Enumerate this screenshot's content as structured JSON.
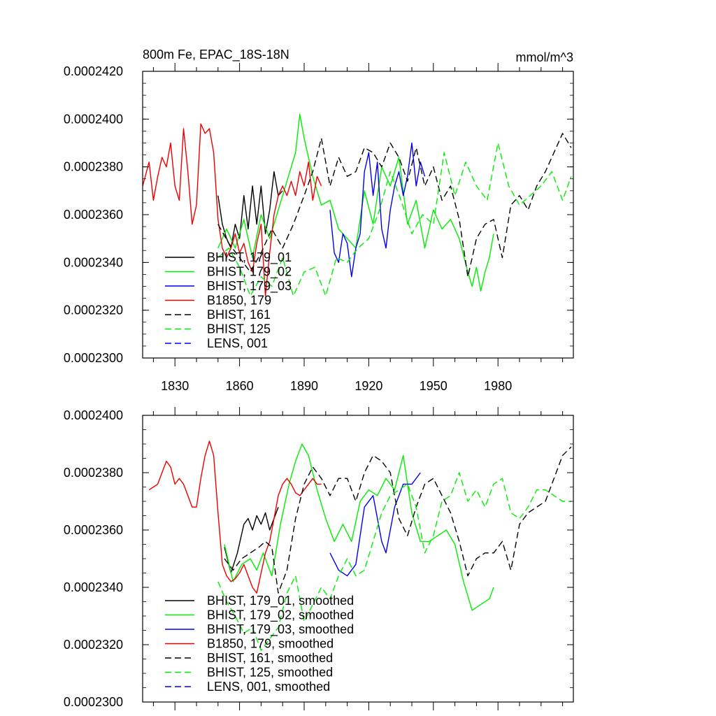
{
  "chart_data": [
    {
      "type": "line",
      "title": "800m Fe, EPAC_18S-18N",
      "units": "mmol/m^3",
      "xlim": [
        1815,
        2015
      ],
      "ylim": [
        0.00023,
        0.000242
      ],
      "x_ticks": [
        1830,
        1860,
        1890,
        1920,
        1950,
        1980
      ],
      "x_tick_labels": [
        "1830",
        "1860",
        "1890",
        "1920",
        "1950",
        "1980"
      ],
      "y_ticks": [
        0.00023,
        0.000232,
        0.000234,
        0.000236,
        0.000238,
        0.00024,
        0.000242
      ],
      "y_tick_labels": [
        "0.0002300",
        "0.0002320",
        "0.0002340",
        "0.0002360",
        "0.0002380",
        "0.0002400",
        "0.0002420"
      ],
      "legend_position": "lower-left",
      "series": [
        {
          "name": "BHIST, 179_01",
          "color": "#000000",
          "dash": "solid",
          "x": [
            1850,
            1852,
            1854,
            1856,
            1858,
            1860,
            1862,
            1864,
            1866,
            1868,
            1870,
            1872,
            1874,
            1876,
            1878,
            1880
          ],
          "values": [
            0.0002368,
            0.0002356,
            0.000235,
            0.0002346,
            0.0002356,
            0.000235,
            0.0002368,
            0.0002354,
            0.0002372,
            0.0002356,
            0.0002372,
            0.0002352,
            0.0002362,
            0.0002378,
            0.0002368,
            0.000237
          ]
        },
        {
          "name": "BHIST, 179_02",
          "color": "#00ee00",
          "dash": "solid",
          "x": [
            1850,
            1854,
            1858,
            1862,
            1866,
            1870,
            1874,
            1878,
            1882,
            1886,
            1888,
            1890,
            1894,
            1898,
            1902,
            1906,
            1910,
            1914,
            1918,
            1922,
            1926,
            1930,
            1934,
            1938,
            1942,
            1946,
            1950,
            1954,
            1958,
            1962,
            1966,
            1968,
            1970,
            1972,
            1974,
            1976,
            1978
          ],
          "values": [
            0.0002346,
            0.0002354,
            0.0002346,
            0.0002358,
            0.0002342,
            0.000236,
            0.000235,
            0.0002362,
            0.0002374,
            0.0002386,
            0.0002402,
            0.0002392,
            0.0002376,
            0.0002364,
            0.0002366,
            0.0002354,
            0.000235,
            0.0002346,
            0.000237,
            0.0002356,
            0.000238,
            0.0002372,
            0.0002384,
            0.0002356,
            0.0002366,
            0.0002346,
            0.0002362,
            0.0002354,
            0.0002358,
            0.000235,
            0.0002336,
            0.000233,
            0.0002338,
            0.0002328,
            0.0002336,
            0.0002342,
            0.0002352
          ]
        },
        {
          "name": "BHIST, 179_03",
          "color": "#0000ee",
          "dash": "solid",
          "x": [
            1902,
            1904,
            1906,
            1908,
            1910,
            1912,
            1914,
            1916,
            1918,
            1920,
            1922,
            1924,
            1926,
            1928,
            1930,
            1932,
            1934,
            1936,
            1938,
            1940,
            1942,
            1944,
            1946
          ],
          "values": [
            0.0002362,
            0.0002344,
            0.000234,
            0.0002352,
            0.0002348,
            0.0002334,
            0.0002346,
            0.0002352,
            0.0002378,
            0.0002386,
            0.0002368,
            0.0002382,
            0.0002354,
            0.0002346,
            0.0002362,
            0.0002372,
            0.0002378,
            0.0002368,
            0.0002376,
            0.000239,
            0.0002372,
            0.0002382,
            0.0002376
          ]
        },
        {
          "name": "B1850, 179",
          "color": "#ee0000",
          "dash": "solid",
          "x": [
            1815,
            1818,
            1820,
            1822,
            1824,
            1826,
            1828,
            1830,
            1832,
            1834,
            1836,
            1838,
            1840,
            1842,
            1844,
            1846,
            1848,
            1850,
            1852,
            1854,
            1856,
            1858,
            1860,
            1862,
            1864,
            1866,
            1868,
            1870,
            1872,
            1874,
            1876,
            1878,
            1880,
            1882,
            1884,
            1886,
            1888,
            1890,
            1892,
            1894,
            1896,
            1898
          ],
          "values": [
            0.0002372,
            0.0002382,
            0.0002366,
            0.0002376,
            0.0002384,
            0.000238,
            0.000239,
            0.0002372,
            0.0002366,
            0.0002396,
            0.0002378,
            0.0002356,
            0.0002364,
            0.0002398,
            0.0002394,
            0.0002396,
            0.0002386,
            0.0002358,
            0.0002346,
            0.0002342,
            0.0002346,
            0.0002352,
            0.0002344,
            0.0002348,
            0.000234,
            0.0002336,
            0.0002348,
            0.0002356,
            0.0002326,
            0.0002344,
            0.000236,
            0.0002368,
            0.0002372,
            0.0002368,
            0.0002374,
            0.0002368,
            0.0002378,
            0.0002372,
            0.0002382,
            0.0002366,
            0.0002376,
            0.0002372
          ]
        },
        {
          "name": "BHIST, 161",
          "color": "#000000",
          "dash": "dashed",
          "x": [
            1850,
            1855,
            1860,
            1865,
            1870,
            1875,
            1880,
            1885,
            1890,
            1894,
            1898,
            1902,
            1906,
            1910,
            1914,
            1918,
            1922,
            1926,
            1930,
            1934,
            1938,
            1942,
            1946,
            1950,
            1954,
            1958,
            1962,
            1966,
            1970,
            1974,
            1978,
            1982,
            1986,
            1990,
            1994,
            1998,
            2002,
            2006,
            2010,
            2014
          ],
          "values": [
            0.0002356,
            0.0002348,
            0.0002342,
            0.0002336,
            0.0002344,
            0.0002354,
            0.0002346,
            0.0002356,
            0.0002368,
            0.0002378,
            0.0002392,
            0.0002372,
            0.0002384,
            0.0002376,
            0.0002378,
            0.0002388,
            0.0002386,
            0.000238,
            0.000239,
            0.0002384,
            0.0002374,
            0.0002388,
            0.0002372,
            0.000238,
            0.0002366,
            0.0002372,
            0.0002358,
            0.0002334,
            0.000235,
            0.0002356,
            0.0002358,
            0.0002342,
            0.0002364,
            0.0002368,
            0.0002362,
            0.0002372,
            0.0002378,
            0.0002386,
            0.0002394,
            0.0002388
          ]
        },
        {
          "name": "BHIST, 125",
          "color": "#00ee00",
          "dash": "dashed",
          "x": [
            1850,
            1855,
            1860,
            1865,
            1870,
            1875,
            1880,
            1885,
            1890,
            1895,
            1900,
            1905,
            1910,
            1915,
            1920,
            1925,
            1930,
            1935,
            1940,
            1945,
            1950,
            1955,
            1960,
            1965,
            1970,
            1975,
            1980,
            1985,
            1990,
            1995,
            2000,
            2005,
            2010,
            2014
          ],
          "values": [
            0.0002342,
            0.0002346,
            0.0002338,
            0.0002326,
            0.0002334,
            0.000233,
            0.0002342,
            0.0002326,
            0.0002336,
            0.0002338,
            0.0002326,
            0.0002342,
            0.000234,
            0.0002346,
            0.000235,
            0.0002362,
            0.0002378,
            0.0002366,
            0.0002352,
            0.000236,
            0.0002356,
            0.0002386,
            0.0002368,
            0.0002382,
            0.0002372,
            0.0002366,
            0.000239,
            0.0002372,
            0.0002364,
            0.0002368,
            0.0002372,
            0.0002378,
            0.0002366,
            0.0002376
          ]
        },
        {
          "name": "LENS, 001",
          "color": "#0000ee",
          "dash": "dashed",
          "x": [],
          "values": []
        }
      ]
    },
    {
      "type": "line",
      "title": "",
      "units": "",
      "xlim": [
        1815,
        2015
      ],
      "ylim": [
        0.00023,
        0.00024
      ],
      "x_ticks": [
        1830,
        1860,
        1890,
        1920,
        1950,
        1980
      ],
      "y_ticks": [
        0.00023,
        0.000232,
        0.000234,
        0.000236,
        0.000238,
        0.00024
      ],
      "y_tick_labels": [
        "0.0002300",
        "0.0002320",
        "0.0002340",
        "0.0002360",
        "0.0002380",
        "0.0002400"
      ],
      "legend_position": "lower-left",
      "series": [
        {
          "name": "BHIST, 179_01, smoothed",
          "color": "#000000",
          "dash": "solid",
          "x": [
            1853,
            1856,
            1859,
            1862,
            1864,
            1866,
            1868,
            1870,
            1872,
            1874,
            1876,
            1878
          ],
          "values": [
            0.0002354,
            0.0002345,
            0.0002352,
            0.0002362,
            0.0002364,
            0.000236,
            0.0002365,
            0.0002362,
            0.0002366,
            0.000236,
            0.0002364,
            0.0002368
          ]
        },
        {
          "name": "BHIST, 179_02, smoothed",
          "color": "#00ee00",
          "dash": "solid",
          "x": [
            1853,
            1857,
            1861,
            1865,
            1868,
            1871,
            1875,
            1879,
            1883,
            1886,
            1889,
            1892,
            1896,
            1900,
            1904,
            1908,
            1912,
            1916,
            1920,
            1924,
            1928,
            1932,
            1936,
            1940,
            1944,
            1948,
            1952,
            1956,
            1960,
            1964,
            1968,
            1972,
            1976,
            1978
          ],
          "values": [
            0.0002355,
            0.0002342,
            0.0002348,
            0.000235,
            0.0002346,
            0.0002352,
            0.0002344,
            0.0002362,
            0.0002376,
            0.0002384,
            0.000239,
            0.0002386,
            0.0002374,
            0.0002364,
            0.0002356,
            0.0002362,
            0.0002356,
            0.000237,
            0.0002374,
            0.0002372,
            0.0002378,
            0.0002374,
            0.0002386,
            0.0002366,
            0.0002356,
            0.0002356,
            0.0002358,
            0.000236,
            0.0002355,
            0.0002342,
            0.0002332,
            0.0002334,
            0.0002336,
            0.000234
          ]
        },
        {
          "name": "BHIST, 179_03, smoothed",
          "color": "#0000ee",
          "dash": "solid",
          "x": [
            1902,
            1906,
            1910,
            1914,
            1918,
            1922,
            1926,
            1928,
            1930,
            1932,
            1936,
            1940,
            1944
          ],
          "values": [
            0.0002352,
            0.0002346,
            0.0002344,
            0.0002348,
            0.0002368,
            0.0002372,
            0.0002356,
            0.0002352,
            0.000236,
            0.0002368,
            0.0002376,
            0.0002376,
            0.000238
          ]
        },
        {
          "name": "B1850, 179, smoothed",
          "color": "#ee0000",
          "dash": "solid",
          "x": [
            1818,
            1820,
            1822,
            1824,
            1826,
            1828,
            1830,
            1832,
            1834,
            1836,
            1838,
            1840,
            1842,
            1844,
            1846,
            1848,
            1850,
            1852,
            1854,
            1856,
            1858,
            1860,
            1862,
            1864,
            1866,
            1868,
            1870,
            1872,
            1874,
            1876,
            1878,
            1880,
            1882,
            1884,
            1886,
            1888,
            1890,
            1892,
            1894,
            1896,
            1898
          ],
          "values": [
            0.0002374,
            0.0002375,
            0.0002376,
            0.000238,
            0.0002384,
            0.0002382,
            0.0002376,
            0.0002378,
            0.0002376,
            0.0002372,
            0.0002368,
            0.0002368,
            0.0002378,
            0.0002386,
            0.0002391,
            0.0002386,
            0.0002366,
            0.0002348,
            0.0002344,
            0.0002342,
            0.0002343,
            0.0002345,
            0.0002348,
            0.0002344,
            0.000234,
            0.0002338,
            0.0002345,
            0.0002352,
            0.0002356,
            0.0002364,
            0.0002372,
            0.0002376,
            0.0002378,
            0.0002376,
            0.0002373,
            0.0002372,
            0.0002374,
            0.0002376,
            0.0002378,
            0.0002376,
            0.0002376
          ]
        },
        {
          "name": "BHIST, 161, smoothed",
          "color": "#000000",
          "dash": "dashed",
          "x": [
            1853,
            1857,
            1861,
            1865,
            1869,
            1872,
            1875,
            1878,
            1882,
            1886,
            1890,
            1894,
            1898,
            1902,
            1906,
            1910,
            1914,
            1918,
            1922,
            1926,
            1930,
            1934,
            1938,
            1942,
            1946,
            1950,
            1954,
            1958,
            1962,
            1966,
            1970,
            1974,
            1978,
            1982,
            1986,
            1990,
            1994,
            1998,
            2002,
            2006,
            2010,
            2014
          ],
          "values": [
            0.000235,
            0.0002346,
            0.000235,
            0.0002352,
            0.0002354,
            0.0002356,
            0.0002354,
            0.0002338,
            0.0002346,
            0.0002364,
            0.0002376,
            0.0002382,
            0.0002378,
            0.0002372,
            0.0002378,
            0.0002378,
            0.000237,
            0.000238,
            0.0002386,
            0.0002384,
            0.000238,
            0.0002364,
            0.0002358,
            0.0002368,
            0.0002376,
            0.0002378,
            0.0002372,
            0.0002366,
            0.0002356,
            0.0002344,
            0.000235,
            0.0002352,
            0.0002352,
            0.0002356,
            0.0002346,
            0.0002362,
            0.0002366,
            0.0002368,
            0.000237,
            0.0002378,
            0.0002386,
            0.0002389
          ]
        },
        {
          "name": "BHIST, 125, smoothed",
          "color": "#00ee00",
          "dash": "dashed",
          "x": [
            1850,
            1854,
            1858,
            1862,
            1866,
            1870,
            1874,
            1878,
            1882,
            1886,
            1890,
            1894,
            1898,
            1902,
            1906,
            1910,
            1914,
            1918,
            1922,
            1926,
            1930,
            1934,
            1938,
            1942,
            1946,
            1950,
            1954,
            1958,
            1962,
            1966,
            1970,
            1974,
            1978,
            1982,
            1986,
            1990,
            1994,
            1998,
            2002,
            2006,
            2010,
            2014
          ],
          "values": [
            0.0002342,
            0.0002335,
            0.000233,
            0.0002324,
            0.0002326,
            0.0002318,
            0.0002322,
            0.0002326,
            0.0002338,
            0.0002344,
            0.0002328,
            0.0002334,
            0.000234,
            0.0002336,
            0.0002344,
            0.000235,
            0.0002344,
            0.0002346,
            0.0002356,
            0.0002366,
            0.0002372,
            0.0002374,
            0.0002376,
            0.0002368,
            0.0002352,
            0.0002358,
            0.000237,
            0.0002372,
            0.000238,
            0.000237,
            0.0002374,
            0.0002368,
            0.0002376,
            0.0002378,
            0.0002366,
            0.0002364,
            0.0002368,
            0.0002374,
            0.0002374,
            0.0002372,
            0.000237,
            0.000237
          ]
        },
        {
          "name": "LENS, 001, smoothed",
          "color": "#0000ee",
          "dash": "dashed",
          "x": [],
          "values": []
        }
      ]
    }
  ]
}
